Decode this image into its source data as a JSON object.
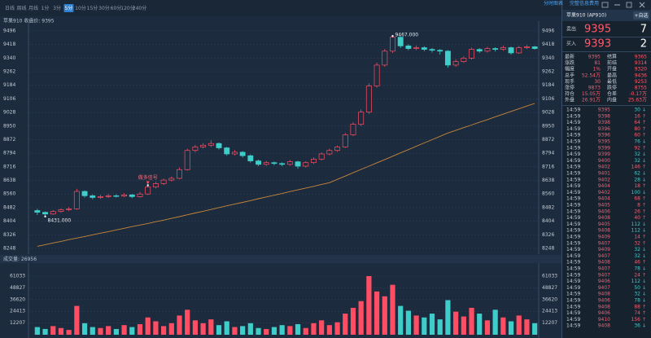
{
  "toolbar": {
    "tabs": [
      "日线",
      "周线",
      "月线",
      "1分",
      "3分",
      "5分",
      "10分",
      "15分",
      "30分",
      "60分",
      "120分",
      "240分"
    ],
    "selected": 5,
    "links": [
      "分时图表",
      "完整信息费用"
    ]
  },
  "chart_data": {
    "type": "candlestick",
    "title": "苹果910 收盘价: 9395",
    "ylim": [
      8215,
      9524
    ],
    "yticks": [
      9496,
      9418,
      9340,
      9262,
      9184,
      9106,
      9028,
      8950,
      8872,
      8794,
      8716,
      8638,
      8560,
      8482,
      8404,
      8326,
      8248
    ],
    "grid": true,
    "up_color": "#ff4d63",
    "down_color": "#3ecdc8",
    "ma_color": "#c8873a",
    "open": [
      8465,
      8455,
      8445,
      8460,
      8470,
      8475,
      8575,
      8550,
      8540,
      8545,
      8550,
      8548,
      8555,
      8545,
      8560,
      8600,
      8620,
      8640,
      8650,
      8700,
      8810,
      8830,
      8840,
      8850,
      8825,
      8790,
      8800,
      8780,
      8750,
      8730,
      8740,
      8735,
      8730,
      8745,
      8720,
      8740,
      8760,
      8790,
      8810,
      8830,
      8900,
      8960,
      9030,
      9180,
      9300,
      9380,
      9460,
      9410,
      9395,
      9400,
      9390,
      9385,
      9380,
      9300,
      9320,
      9340,
      9390,
      9380,
      9395,
      9390,
      9400,
      9370,
      9400,
      9405
    ],
    "high": [
      8475,
      8460,
      8468,
      8478,
      8485,
      8590,
      8580,
      8558,
      8555,
      8560,
      8558,
      8565,
      8560,
      8572,
      8610,
      8630,
      8648,
      8660,
      8712,
      8820,
      8842,
      8852,
      8868,
      8856,
      8830,
      8812,
      8806,
      8786,
      8758,
      8750,
      8746,
      8742,
      8755,
      8750,
      8748,
      8770,
      8798,
      8820,
      8838,
      8910,
      8972,
      9045,
      9195,
      9315,
      9392,
      9467,
      9465,
      9420,
      9412,
      9408,
      9398,
      9392,
      9386,
      9332,
      9350,
      9400,
      9398,
      9405,
      9402,
      9412,
      9406,
      9410,
      9415,
      9410
    ],
    "low": [
      8440,
      8431,
      8440,
      8452,
      8462,
      8470,
      8540,
      8530,
      8532,
      8538,
      8540,
      8542,
      8536,
      8540,
      8555,
      8592,
      8612,
      8632,
      8645,
      8695,
      8800,
      8822,
      8830,
      8815,
      8780,
      8782,
      8770,
      8740,
      8720,
      8722,
      8725,
      8720,
      8722,
      8705,
      8712,
      8732,
      8752,
      8782,
      8802,
      8825,
      8892,
      8950,
      9020,
      9170,
      9290,
      9370,
      9398,
      9385,
      9386,
      9380,
      9372,
      9360,
      9285,
      9290,
      9312,
      9332,
      9370,
      9372,
      9378,
      9382,
      9360,
      9365,
      9392,
      9388
    ],
    "close": [
      8455,
      8445,
      8460,
      8470,
      8475,
      8575,
      8550,
      8540,
      8545,
      8550,
      8548,
      8555,
      8545,
      8560,
      8600,
      8620,
      8640,
      8650,
      8700,
      8810,
      8830,
      8840,
      8850,
      8825,
      8790,
      8800,
      8780,
      8750,
      8730,
      8740,
      8735,
      8730,
      8745,
      8720,
      8740,
      8760,
      8790,
      8810,
      8830,
      8900,
      8960,
      9030,
      9180,
      9300,
      9380,
      9460,
      9410,
      9395,
      9400,
      9390,
      9385,
      9380,
      9300,
      9320,
      9340,
      9390,
      9380,
      9395,
      9390,
      9400,
      9370,
      9400,
      9405,
      9395
    ],
    "ma": [
      8260,
      8269,
      8279,
      8288,
      8298,
      8307,
      8316,
      8326,
      8335,
      8344,
      8354,
      8363,
      8373,
      8382,
      8391,
      8401,
      8410,
      8420,
      8430,
      8441,
      8451,
      8461,
      8471,
      8482,
      8492,
      8502,
      8512,
      8522,
      8533,
      8543,
      8553,
      8563,
      8574,
      8584,
      8594,
      8604,
      8615,
      8625,
      8644,
      8663,
      8682,
      8701,
      8720,
      8739,
      8758,
      8777,
      8796,
      8815,
      8834,
      8853,
      8872,
      8891,
      8910,
      8925,
      8941,
      8956,
      8972,
      8987,
      9003,
      9018,
      9034,
      9049,
      9065,
      9080
    ],
    "annotations": [
      {
        "text": "9467.000",
        "index": 45,
        "value": 9467
      },
      {
        "text": "8431.000",
        "index": 1,
        "value": 8431
      },
      {
        "text": "做多信号",
        "index": 14,
        "value": 8610
      }
    ],
    "volume": {
      "title": "成交量: 26956",
      "ylim": [
        0,
        71200
      ],
      "yticks": [
        61033,
        48827,
        36620,
        24413,
        12207
      ],
      "values": [
        8000,
        6000,
        9000,
        7000,
        5000,
        30000,
        12000,
        8000,
        7000,
        9000,
        6000,
        10000,
        8000,
        11000,
        18000,
        14000,
        9000,
        12000,
        20000,
        26000,
        15000,
        12000,
        16000,
        10000,
        14000,
        8000,
        9000,
        12000,
        7000,
        6000,
        8000,
        10000,
        9000,
        11000,
        7000,
        12000,
        15000,
        10000,
        13000,
        22000,
        28000,
        35000,
        61033,
        45000,
        40000,
        52000,
        30000,
        25000,
        20000,
        18000,
        22000,
        16000,
        36000,
        24000,
        19000,
        28000,
        22000,
        15000,
        26000,
        18000,
        14000,
        20000,
        16000,
        12000
      ]
    }
  },
  "quote": {
    "title": "苹果910 (AP910)",
    "button": "+自选",
    "sell": {
      "label": "卖出",
      "price": "9395",
      "volume": "7"
    },
    "buy": {
      "label": "买入",
      "price": "9393",
      "volume": "2"
    },
    "stats": [
      [
        "最新",
        "9395",
        "结算",
        "9365"
      ],
      [
        "涨跌",
        "81",
        "前结",
        "9314"
      ],
      [
        "幅度",
        "1%",
        "开盘",
        "9320"
      ],
      [
        "总手",
        "52.54万",
        "最高",
        "9436"
      ],
      [
        "现手",
        "30",
        "最低",
        "9253"
      ],
      [
        "涨停",
        "9873",
        "跌停",
        "8755"
      ],
      [
        "持仓",
        "15.05万",
        "仓差",
        "-0.17万"
      ],
      [
        "外盘",
        "26.91万",
        "内盘",
        "25.63万"
      ]
    ],
    "ticks": [
      [
        "14:59",
        "9395",
        "30",
        "↓"
      ],
      [
        "14:59",
        "9398",
        "16",
        "↑"
      ],
      [
        "14:59",
        "9398",
        "64",
        "↑"
      ],
      [
        "14:59",
        "9396",
        "80",
        "↑"
      ],
      [
        "14:59",
        "9396",
        "60",
        "↑"
      ],
      [
        "14:59",
        "9395",
        "76",
        "↓"
      ],
      [
        "14:59",
        "9399",
        "92",
        "↑"
      ],
      [
        "14:59",
        "9399",
        "32",
        "↓"
      ],
      [
        "14:59",
        "9400",
        "32",
        "↓"
      ],
      [
        "14:59",
        "9402",
        "146",
        "↑"
      ],
      [
        "14:59",
        "9401",
        "62",
        "↓"
      ],
      [
        "14:59",
        "9402",
        "28",
        "↓"
      ],
      [
        "14:59",
        "9404",
        "18",
        "↑"
      ],
      [
        "14:59",
        "9402",
        "100",
        "↓"
      ],
      [
        "14:59",
        "9404",
        "68",
        "↑"
      ],
      [
        "14:59",
        "9405",
        "8",
        "↑"
      ],
      [
        "14:59",
        "9406",
        "26",
        "↑"
      ],
      [
        "14:59",
        "9408",
        "40",
        "↑"
      ],
      [
        "14:59",
        "9405",
        "112",
        "↓"
      ],
      [
        "14:59",
        "9408",
        "112",
        "↓"
      ],
      [
        "14:59",
        "9409",
        "14",
        "↑"
      ],
      [
        "14:59",
        "9407",
        "32",
        "↑"
      ],
      [
        "14:59",
        "9409",
        "32",
        "↓"
      ],
      [
        "14:59",
        "9407",
        "32",
        "↓"
      ],
      [
        "14:59",
        "9408",
        "46",
        "↑"
      ],
      [
        "14:59",
        "9407",
        "78",
        "↓"
      ],
      [
        "14:59",
        "9407",
        "24",
        "↑"
      ],
      [
        "14:59",
        "9406",
        "112",
        "↓"
      ],
      [
        "14:59",
        "9407",
        "50",
        "↓"
      ],
      [
        "14:59",
        "9408",
        "32",
        "↓"
      ],
      [
        "14:59",
        "9406",
        "78",
        "↓"
      ],
      [
        "14:59",
        "9408",
        "88",
        "↑"
      ],
      [
        "14:59",
        "9406",
        "74",
        "↑"
      ],
      [
        "14:59",
        "9410",
        "156",
        "↑"
      ],
      [
        "14:59",
        "9408",
        "36",
        "↓"
      ]
    ]
  }
}
